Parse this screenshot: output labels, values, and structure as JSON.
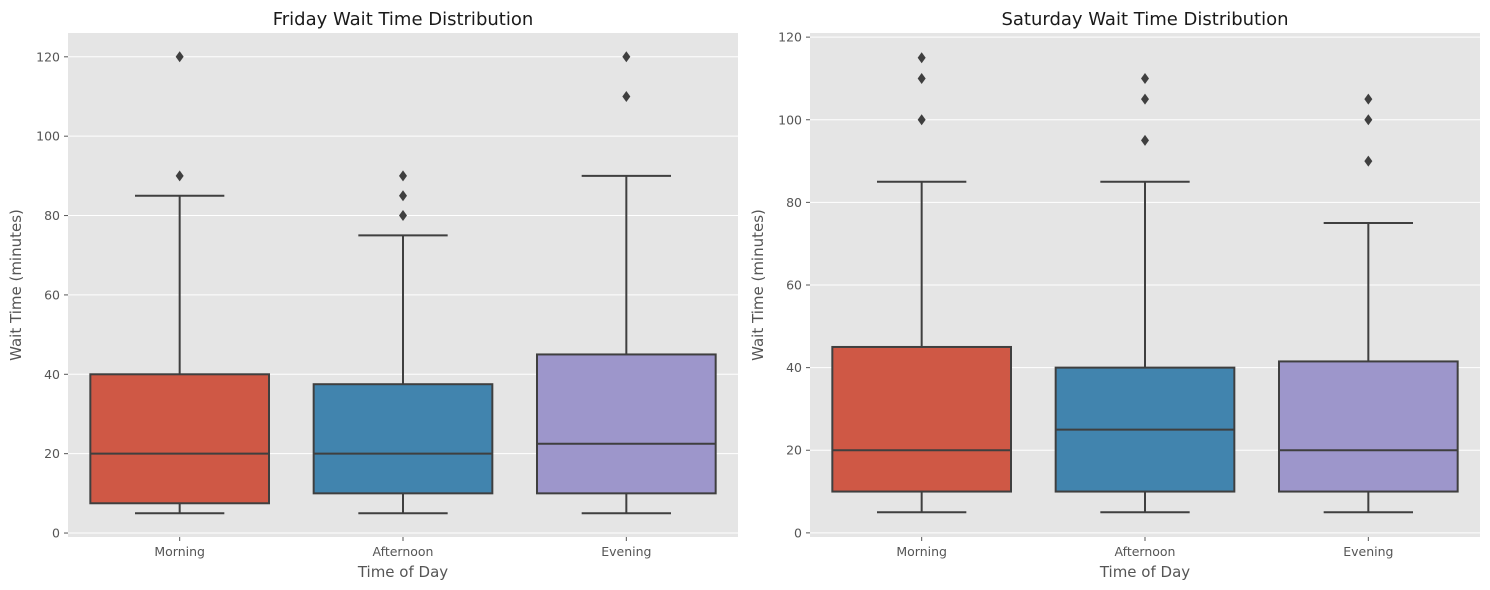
{
  "chart_data": [
    {
      "type": "box",
      "title": "Friday Wait Time Distribution",
      "xlabel": "Time of Day",
      "ylabel": "Wait Time (minutes)",
      "categories": [
        "Morning",
        "Afternoon",
        "Evening"
      ],
      "colors": [
        "#cf5845",
        "#4184ae",
        "#9d96cb"
      ],
      "ylim": [
        -1,
        126
      ],
      "yticks": [
        0,
        20,
        40,
        60,
        80,
        100,
        120
      ],
      "grid": true,
      "boxes": [
        {
          "whisker_low": 5,
          "q1": 7.5,
          "median": 20,
          "q3": 40,
          "whisker_high": 85,
          "fliers": [
            90,
            120
          ]
        },
        {
          "whisker_low": 5,
          "q1": 10,
          "median": 20,
          "q3": 37.5,
          "whisker_high": 75,
          "fliers": [
            80,
            85,
            90
          ]
        },
        {
          "whisker_low": 5,
          "q1": 10,
          "median": 22.5,
          "q3": 45,
          "whisker_high": 90,
          "fliers": [
            110,
            120
          ]
        }
      ]
    },
    {
      "type": "box",
      "title": "Saturday Wait Time Distribution",
      "xlabel": "Time of Day",
      "ylabel": "Wait Time (minutes)",
      "categories": [
        "Morning",
        "Afternoon",
        "Evening"
      ],
      "colors": [
        "#cf5845",
        "#4184ae",
        "#9d96cb"
      ],
      "ylim": [
        -1,
        121
      ],
      "yticks": [
        0,
        20,
        40,
        60,
        80,
        100,
        120
      ],
      "grid": true,
      "boxes": [
        {
          "whisker_low": 5,
          "q1": 10,
          "median": 20,
          "q3": 45,
          "whisker_high": 85,
          "fliers": [
            100,
            110,
            115
          ]
        },
        {
          "whisker_low": 5,
          "q1": 10,
          "median": 25,
          "q3": 40,
          "whisker_high": 85,
          "fliers": [
            95,
            105,
            110
          ]
        },
        {
          "whisker_low": 5,
          "q1": 10,
          "median": 20,
          "q3": 41.5,
          "whisker_high": 75,
          "fliers": [
            90,
            100,
            105
          ]
        }
      ]
    }
  ]
}
